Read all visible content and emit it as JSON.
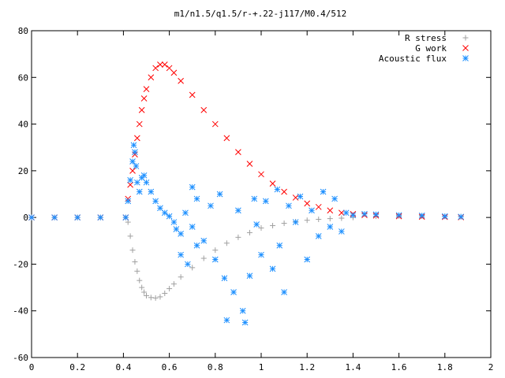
{
  "chart_data": {
    "type": "scatter",
    "title": "m1/n1.5/q1.5/r-+.22-j117/M0.4/512",
    "xlabel": "",
    "ylabel": "",
    "xlim": [
      0,
      2
    ],
    "ylim": [
      -60,
      80
    ],
    "x_ticks": [
      0,
      0.2,
      0.4,
      0.6,
      0.8,
      1,
      1.2,
      1.4,
      1.6,
      1.8,
      2
    ],
    "x_tick_labels": [
      "0",
      "0.2",
      "0.4",
      "0.6",
      "0.8",
      "1",
      "1.2",
      "1.4",
      "1.6",
      "1.8",
      "2"
    ],
    "y_ticks": [
      -60,
      -40,
      -20,
      0,
      20,
      40,
      60,
      80
    ],
    "y_tick_labels": [
      "-60",
      "-40",
      "-20",
      "0",
      "20",
      "40",
      "60",
      "80"
    ],
    "grid": false,
    "legend_position": "top-right",
    "series": [
      {
        "name": "R stress",
        "marker": "plus",
        "color": "#a0a0a0",
        "points": [
          [
            0.0,
            0
          ],
          [
            0.1,
            0
          ],
          [
            0.2,
            0
          ],
          [
            0.3,
            0
          ],
          [
            0.41,
            0
          ],
          [
            0.42,
            -2
          ],
          [
            0.43,
            -8
          ],
          [
            0.44,
            -14
          ],
          [
            0.45,
            -19
          ],
          [
            0.46,
            -23
          ],
          [
            0.47,
            -27
          ],
          [
            0.48,
            -30
          ],
          [
            0.49,
            -32
          ],
          [
            0.5,
            -33.5
          ],
          [
            0.52,
            -34.3
          ],
          [
            0.54,
            -34.5
          ],
          [
            0.56,
            -34
          ],
          [
            0.58,
            -32.5
          ],
          [
            0.6,
            -30.5
          ],
          [
            0.62,
            -28.5
          ],
          [
            0.65,
            -25.5
          ],
          [
            0.7,
            -21.5
          ],
          [
            0.75,
            -17.5
          ],
          [
            0.8,
            -14
          ],
          [
            0.85,
            -11
          ],
          [
            0.9,
            -8.5
          ],
          [
            0.95,
            -6.5
          ],
          [
            1.0,
            -4.5
          ],
          [
            1.05,
            -3.5
          ],
          [
            1.1,
            -2.5
          ],
          [
            1.15,
            -1.8
          ],
          [
            1.2,
            -1.2
          ],
          [
            1.25,
            -0.8
          ],
          [
            1.3,
            -0.5
          ],
          [
            1.35,
            -0.3
          ],
          [
            1.4,
            0
          ],
          [
            1.5,
            0.5
          ],
          [
            1.6,
            0.6
          ],
          [
            1.7,
            0.6
          ],
          [
            1.8,
            0.5
          ],
          [
            1.87,
            0.4
          ]
        ]
      },
      {
        "name": "G work",
        "marker": "cross",
        "color": "#ff0000",
        "points": [
          [
            0.0,
            0
          ],
          [
            0.1,
            0
          ],
          [
            0.2,
            0
          ],
          [
            0.3,
            0
          ],
          [
            0.41,
            0
          ],
          [
            0.42,
            8
          ],
          [
            0.43,
            14
          ],
          [
            0.44,
            20
          ],
          [
            0.45,
            27
          ],
          [
            0.46,
            34
          ],
          [
            0.47,
            40
          ],
          [
            0.48,
            46
          ],
          [
            0.49,
            51
          ],
          [
            0.5,
            55
          ],
          [
            0.52,
            60
          ],
          [
            0.54,
            64
          ],
          [
            0.56,
            65.5
          ],
          [
            0.58,
            65.5
          ],
          [
            0.6,
            64
          ],
          [
            0.62,
            62
          ],
          [
            0.65,
            58.5
          ],
          [
            0.7,
            52.5
          ],
          [
            0.75,
            46
          ],
          [
            0.8,
            40
          ],
          [
            0.85,
            34
          ],
          [
            0.9,
            28
          ],
          [
            0.95,
            23
          ],
          [
            1.0,
            18.5
          ],
          [
            1.05,
            14.5
          ],
          [
            1.1,
            11
          ],
          [
            1.15,
            8.5
          ],
          [
            1.2,
            6
          ],
          [
            1.25,
            4.5
          ],
          [
            1.3,
            3
          ],
          [
            1.35,
            2
          ],
          [
            1.4,
            1.5
          ],
          [
            1.45,
            1
          ],
          [
            1.5,
            0.8
          ],
          [
            1.6,
            0.5
          ],
          [
            1.7,
            0.3
          ],
          [
            1.8,
            0.2
          ],
          [
            1.87,
            0.1
          ]
        ]
      },
      {
        "name": "Acoustic flux",
        "marker": "star",
        "color": "#1e90ff",
        "points": [
          [
            0.0,
            0
          ],
          [
            0.1,
            0
          ],
          [
            0.2,
            0
          ],
          [
            0.3,
            0
          ],
          [
            0.41,
            0
          ],
          [
            0.42,
            7
          ],
          [
            0.43,
            16
          ],
          [
            0.44,
            24
          ],
          [
            0.445,
            31
          ],
          [
            0.45,
            28
          ],
          [
            0.455,
            22
          ],
          [
            0.46,
            15
          ],
          [
            0.47,
            11
          ],
          [
            0.48,
            17
          ],
          [
            0.49,
            18
          ],
          [
            0.5,
            15
          ],
          [
            0.52,
            11
          ],
          [
            0.54,
            7
          ],
          [
            0.56,
            4
          ],
          [
            0.58,
            2
          ],
          [
            0.6,
            0.5
          ],
          [
            0.62,
            -2
          ],
          [
            0.63,
            -5
          ],
          [
            0.65,
            -7
          ],
          [
            0.67,
            2
          ],
          [
            0.7,
            -4
          ],
          [
            0.72,
            -12
          ],
          [
            0.65,
            -16
          ],
          [
            0.68,
            -20
          ],
          [
            0.7,
            13
          ],
          [
            0.72,
            8
          ],
          [
            0.75,
            -10
          ],
          [
            0.78,
            5
          ],
          [
            0.8,
            -18
          ],
          [
            0.82,
            10
          ],
          [
            0.84,
            -26
          ],
          [
            0.85,
            -44
          ],
          [
            0.88,
            -32
          ],
          [
            0.9,
            3
          ],
          [
            0.92,
            -40
          ],
          [
            0.93,
            -45
          ],
          [
            0.95,
            -25
          ],
          [
            0.97,
            8
          ],
          [
            0.98,
            -3
          ],
          [
            1.0,
            -16
          ],
          [
            1.02,
            7
          ],
          [
            1.05,
            -22
          ],
          [
            1.07,
            12
          ],
          [
            1.08,
            -12
          ],
          [
            1.1,
            -32
          ],
          [
            1.12,
            5
          ],
          [
            1.15,
            -2
          ],
          [
            1.17,
            9
          ],
          [
            1.2,
            -18
          ],
          [
            1.22,
            3
          ],
          [
            1.25,
            -8
          ],
          [
            1.27,
            11
          ],
          [
            1.3,
            -4
          ],
          [
            1.32,
            8
          ],
          [
            1.35,
            -6
          ],
          [
            1.37,
            2
          ],
          [
            1.4,
            1
          ],
          [
            1.45,
            1.5
          ],
          [
            1.5,
            1.3
          ],
          [
            1.6,
            1
          ],
          [
            1.7,
            0.8
          ],
          [
            1.8,
            0.5
          ],
          [
            1.87,
            0.3
          ]
        ]
      }
    ]
  }
}
